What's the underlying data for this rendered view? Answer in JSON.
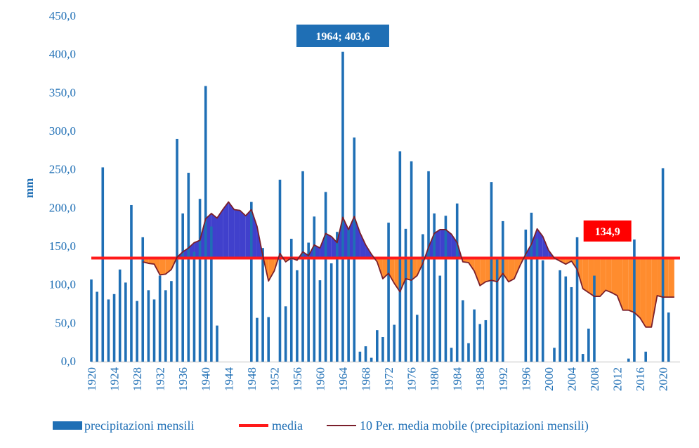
{
  "chart_data": {
    "type": "bar",
    "title": "",
    "xlabel": "",
    "ylabel": "mm",
    "ylim": [
      0,
      450
    ],
    "yticks": [
      0,
      50,
      100,
      150,
      200,
      250,
      300,
      350,
      400,
      450
    ],
    "ytick_labels": [
      "0,0",
      "50,0",
      "100,0",
      "150,0",
      "200,0",
      "250,0",
      "300,0",
      "350,0",
      "400,0",
      "450,0"
    ],
    "xlim": [
      1920,
      2023
    ],
    "xticks": [
      1920,
      1924,
      1928,
      1932,
      1936,
      1940,
      1944,
      1948,
      1952,
      1956,
      1960,
      1964,
      1968,
      1972,
      1976,
      1980,
      1984,
      1988,
      1992,
      1996,
      2000,
      2004,
      2008,
      2012,
      2016,
      2020
    ],
    "mean": 134.9,
    "mean_label": "134,9",
    "series": [
      {
        "name": "precipitazioni mensili",
        "type": "bar",
        "color": "#1f6fb5",
        "x": [
          1920,
          1921,
          1922,
          1923,
          1924,
          1925,
          1926,
          1927,
          1928,
          1929,
          1930,
          1931,
          1932,
          1933,
          1934,
          1935,
          1936,
          1937,
          1938,
          1939,
          1940,
          1941,
          1942,
          1943,
          1944,
          1945,
          1946,
          1947,
          1948,
          1949,
          1950,
          1951,
          1952,
          1953,
          1954,
          1955,
          1956,
          1957,
          1958,
          1959,
          1960,
          1961,
          1962,
          1963,
          1964,
          1965,
          1966,
          1967,
          1968,
          1969,
          1970,
          1971,
          1972,
          1973,
          1974,
          1975,
          1976,
          1977,
          1978,
          1979,
          1980,
          1981,
          1982,
          1983,
          1984,
          1985,
          1986,
          1987,
          1988,
          1989,
          1990,
          1991,
          1992,
          1993,
          1994,
          1995,
          1996,
          1997,
          1998,
          1999,
          2000,
          2001,
          2002,
          2003,
          2004,
          2005,
          2006,
          2007,
          2008,
          2009,
          2010,
          2011,
          2012,
          2013,
          2014,
          2015,
          2016,
          2017,
          2018,
          2019,
          2020,
          2021,
          2022
        ],
        "values": [
          107,
          91,
          253,
          81,
          88,
          120,
          103,
          204,
          79,
          162,
          93,
          81,
          112,
          93,
          105,
          290,
          193,
          246,
          143,
          212,
          359,
          176,
          47,
          0,
          0,
          0,
          0,
          0,
          208,
          57,
          148,
          58,
          0,
          237,
          72,
          160,
          119,
          248,
          155,
          189,
          106,
          221,
          128,
          169,
          403.6,
          172,
          292,
          13,
          20,
          5,
          41,
          32,
          181,
          48,
          274,
          173,
          261,
          61,
          166,
          248,
          193,
          112,
          190,
          18,
          206,
          80,
          24,
          68,
          49,
          54,
          234,
          133,
          183,
          0,
          0,
          0,
          172,
          194,
          160,
          132,
          0,
          18,
          119,
          111,
          97,
          162,
          10,
          43,
          112,
          0,
          0,
          0,
          0,
          0,
          4,
          159,
          0,
          13,
          0,
          0,
          252,
          64,
          0
        ]
      },
      {
        "name": "media",
        "type": "line",
        "color": "#ff1a1a",
        "value": 134.9
      },
      {
        "name": "10 Per. media mobile (precipitazioni mensili)",
        "type": "line",
        "color": "#7a1f2b",
        "x": [
          1929,
          1930,
          1931,
          1932,
          1933,
          1934,
          1935,
          1936,
          1937,
          1938,
          1939,
          1940,
          1941,
          1942,
          1943,
          1944,
          1945,
          1946,
          1947,
          1948,
          1949,
          1950,
          1951,
          1952,
          1953,
          1954,
          1955,
          1956,
          1957,
          1958,
          1959,
          1960,
          1961,
          1962,
          1963,
          1964,
          1965,
          1966,
          1967,
          1968,
          1969,
          1970,
          1971,
          1972,
          1973,
          1974,
          1975,
          1976,
          1977,
          1978,
          1979,
          1980,
          1981,
          1982,
          1983,
          1984,
          1985,
          1986,
          1987,
          1988,
          1989,
          1990,
          1991,
          1992,
          1993,
          1994,
          1995,
          1996,
          1997,
          1998,
          1999,
          2000,
          2001,
          2002,
          2003,
          2004,
          2005,
          2006,
          2007,
          2008,
          2009,
          2010,
          2011,
          2012,
          2013,
          2014,
          2015,
          2016,
          2017,
          2018,
          2019,
          2020,
          2021,
          2022
        ],
        "values": [
          130,
          128,
          127,
          113,
          114,
          120,
          136,
          143,
          148,
          155,
          158,
          186,
          193,
          187,
          198,
          208,
          198,
          197,
          190,
          198,
          176,
          138,
          105,
          118,
          141,
          130,
          135,
          132,
          143,
          138,
          152,
          148,
          167,
          163,
          155,
          188,
          172,
          189,
          168,
          152,
          140,
          130,
          108,
          115,
          102,
          91,
          108,
          106,
          112,
          128,
          149,
          167,
          172,
          172,
          166,
          155,
          130,
          129,
          118,
          99,
          104,
          106,
          104,
          115,
          104,
          108,
          125,
          140,
          153,
          173,
          163,
          145,
          135,
          131,
          127,
          131,
          120,
          95,
          90,
          85,
          85,
          93,
          90,
          86,
          67,
          67,
          64,
          57,
          45,
          45,
          86,
          84,
          84,
          84
        ]
      }
    ],
    "annotations": [
      {
        "text": "1964; 403,6",
        "x": 1964,
        "y": 403.6,
        "color": "#1f6fb5"
      },
      {
        "text": "134,9",
        "x": 2006,
        "y": 134.9,
        "color": "#ff0000"
      }
    ],
    "fill_above_color": "#4040cc",
    "fill_below_color": "#ff8c2e",
    "legend": {
      "position": "bottom",
      "items": [
        {
          "label": "precipitazioni mensili",
          "color": "#1f6fb5",
          "kind": "bar"
        },
        {
          "label": "media",
          "color": "#ff1a1a",
          "kind": "line"
        },
        {
          "label": "10 Per. media mobile (precipitazioni mensili)",
          "color": "#7a1f2b",
          "kind": "line"
        }
      ]
    }
  }
}
